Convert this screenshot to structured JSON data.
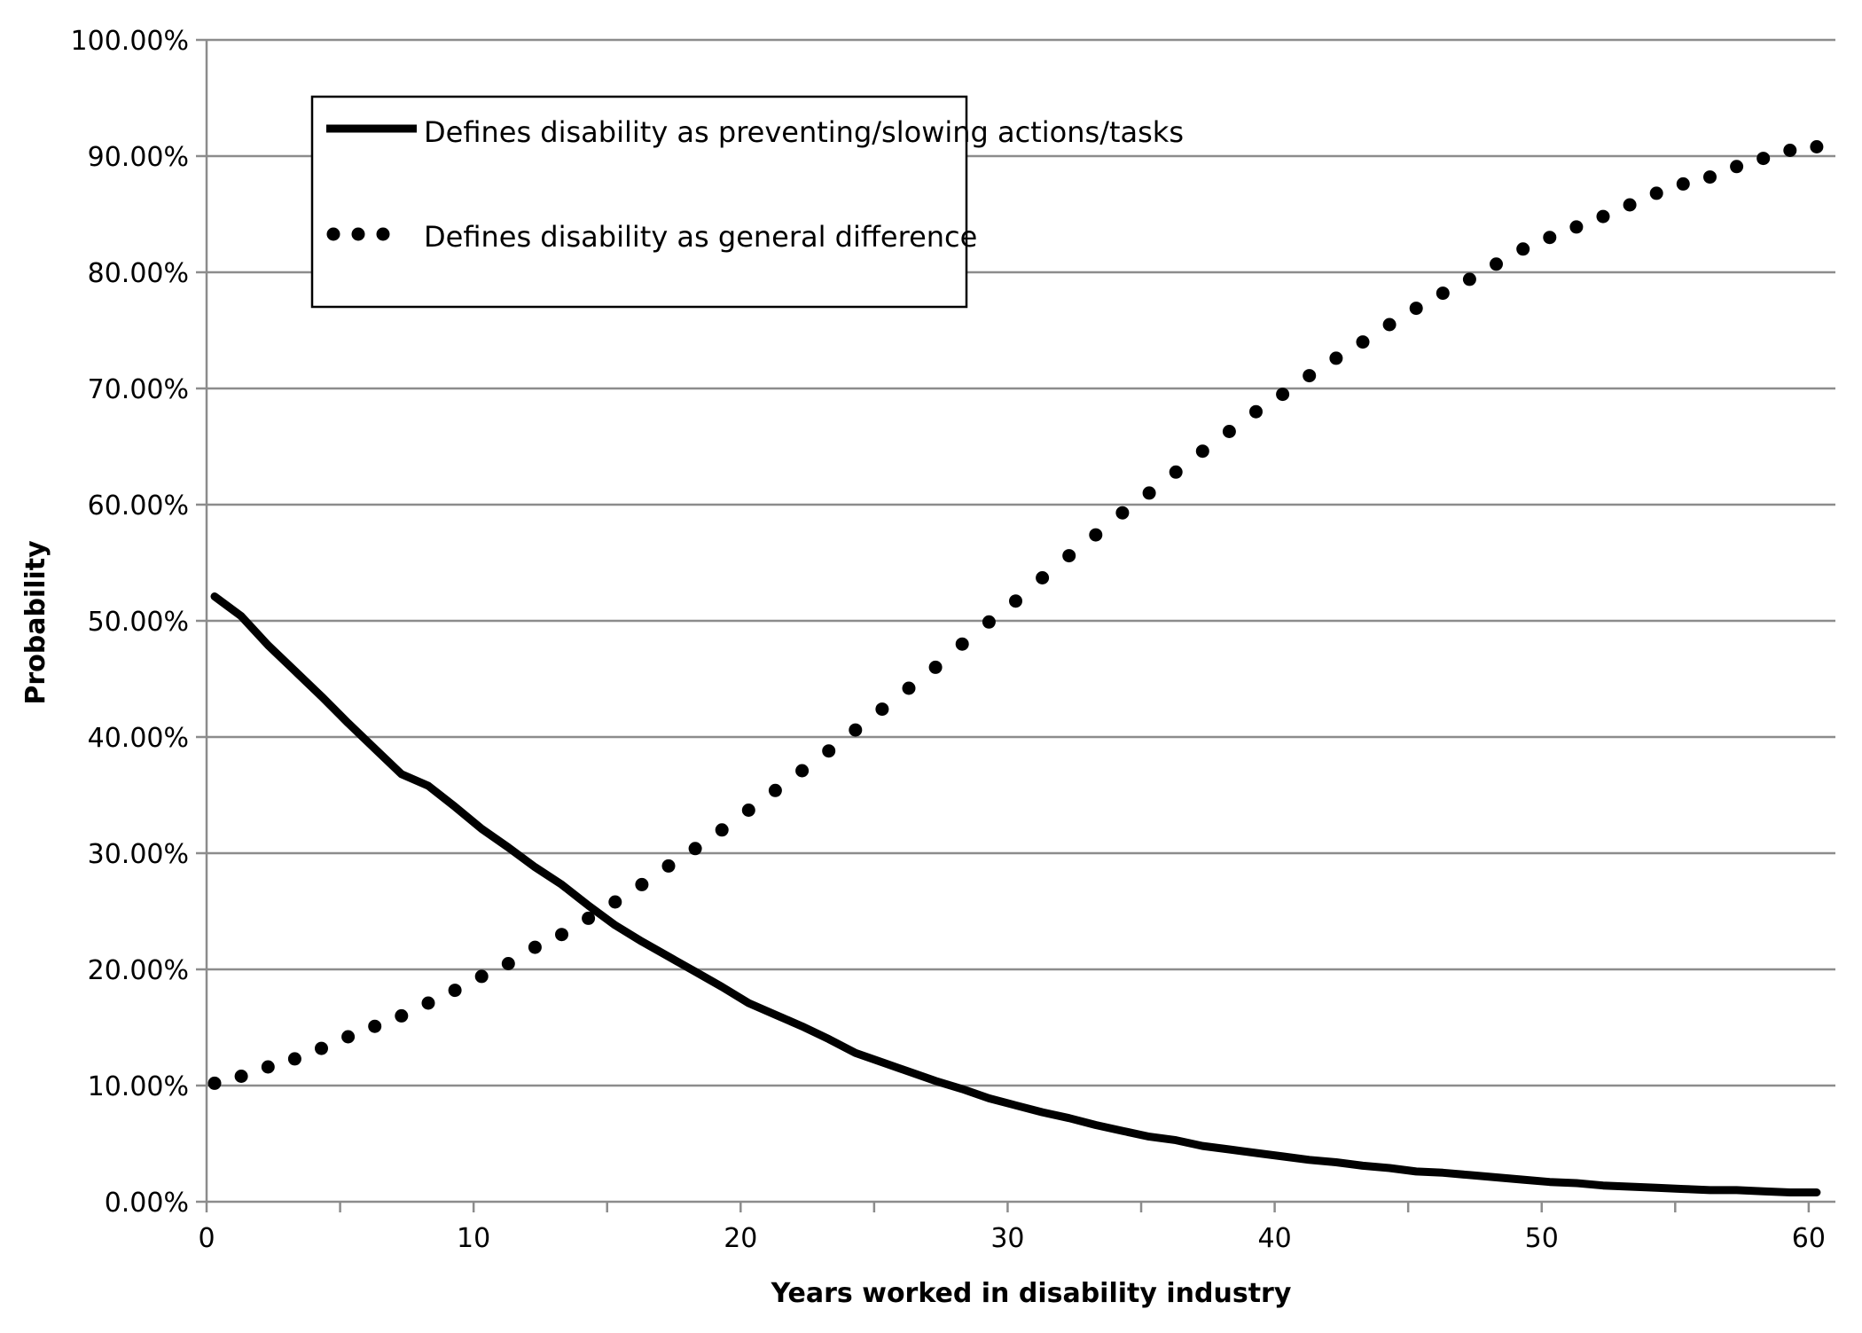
{
  "chart_data": {
    "type": "line",
    "title": "",
    "xlabel": "Years worked in disability industry",
    "ylabel": "Probability",
    "xlim": [
      0,
      61
    ],
    "ylim": [
      0,
      1
    ],
    "x_ticks": [
      0,
      10,
      20,
      30,
      40,
      50,
      60
    ],
    "x_tick_labels": [
      "0",
      "10",
      "20",
      "30",
      "40",
      "50",
      "60"
    ],
    "y_ticks": [
      0,
      0.1,
      0.2,
      0.3,
      0.4,
      0.5,
      0.6,
      0.7,
      0.8,
      0.9,
      1.0
    ],
    "y_tick_labels": [
      "0.00%",
      "10.00%",
      "20.00%",
      "30.00%",
      "40.00%",
      "50.00%",
      "60.00%",
      "70.00%",
      "80.00%",
      "90.00%",
      "100.00%"
    ],
    "grid": "horizontal",
    "legend_position": "top-left",
    "x": [
      0,
      1,
      2,
      3,
      4,
      5,
      6,
      7,
      8,
      9,
      10,
      11,
      12,
      13,
      14,
      15,
      16,
      17,
      18,
      19,
      20,
      21,
      22,
      23,
      24,
      25,
      26,
      27,
      28,
      29,
      30,
      31,
      32,
      33,
      34,
      35,
      36,
      37,
      38,
      39,
      40,
      41,
      42,
      43,
      44,
      45,
      46,
      47,
      48,
      49,
      50,
      51,
      52,
      53,
      54,
      55,
      56,
      57,
      58,
      59,
      60
    ],
    "series": [
      {
        "name": "Defines disability as preventing/slowing actions/tasks",
        "style": "solid",
        "color": "#000000",
        "values": [
          0.521,
          0.504,
          0.479,
          0.457,
          0.435,
          0.412,
          0.39,
          0.368,
          0.358,
          0.34,
          0.321,
          0.305,
          0.288,
          0.273,
          0.255,
          0.238,
          0.224,
          0.211,
          0.198,
          0.185,
          0.171,
          0.161,
          0.151,
          0.14,
          0.128,
          0.12,
          0.112,
          0.104,
          0.097,
          0.089,
          0.083,
          0.077,
          0.072,
          0.066,
          0.061,
          0.056,
          0.053,
          0.048,
          0.045,
          0.042,
          0.039,
          0.036,
          0.034,
          0.031,
          0.029,
          0.026,
          0.025,
          0.023,
          0.021,
          0.019,
          0.017,
          0.016,
          0.014,
          0.013,
          0.012,
          0.011,
          0.01,
          0.01,
          0.009,
          0.008,
          0.008
        ]
      },
      {
        "name": "Defines disability as general difference",
        "style": "dotted",
        "color": "#000000",
        "values": [
          0.102,
          0.108,
          0.116,
          0.123,
          0.132,
          0.142,
          0.151,
          0.16,
          0.171,
          0.182,
          0.194,
          0.205,
          0.219,
          0.23,
          0.244,
          0.258,
          0.273,
          0.289,
          0.304,
          0.32,
          0.337,
          0.354,
          0.371,
          0.388,
          0.406,
          0.424,
          0.442,
          0.46,
          0.48,
          0.499,
          0.517,
          0.537,
          0.556,
          0.574,
          0.593,
          0.61,
          0.628,
          0.646,
          0.663,
          0.68,
          0.695,
          0.711,
          0.726,
          0.74,
          0.755,
          0.769,
          0.782,
          0.794,
          0.807,
          0.82,
          0.83,
          0.839,
          0.848,
          0.858,
          0.868,
          0.876,
          0.882,
          0.891,
          0.898,
          0.905,
          0.908
        ]
      }
    ]
  }
}
